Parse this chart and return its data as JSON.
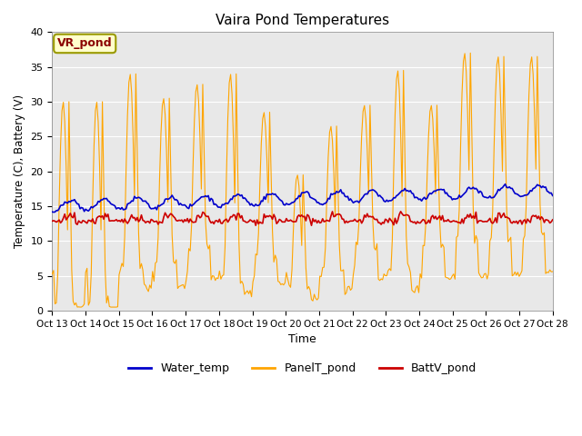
{
  "title": "Vaira Pond Temperatures",
  "xlabel": "Time",
  "ylabel": "Temperature (C), Battery (V)",
  "ylim": [
    0,
    40
  ],
  "xtick_labels": [
    "Oct 13",
    "Oct 14",
    "Oct 15",
    "Oct 16",
    "Oct 17",
    "Oct 18",
    "Oct 19",
    "Oct 20",
    "Oct 21",
    "Oct 22",
    "Oct 23",
    "Oct 24",
    "Oct 25",
    "Oct 26",
    "Oct 27",
    "Oct 28"
  ],
  "site_label": "VR_pond",
  "bg_color": "#e8e8e8",
  "panel_color": "#ffa500",
  "water_color": "#0000cc",
  "batt_color": "#cc0000",
  "legend_labels": [
    "Water_temp",
    "PanelT_pond",
    "BattV_pond"
  ],
  "yticks": [
    0,
    5,
    10,
    15,
    20,
    25,
    30,
    35,
    40
  ],
  "figsize": [
    6.4,
    4.8
  ],
  "dpi": 100
}
